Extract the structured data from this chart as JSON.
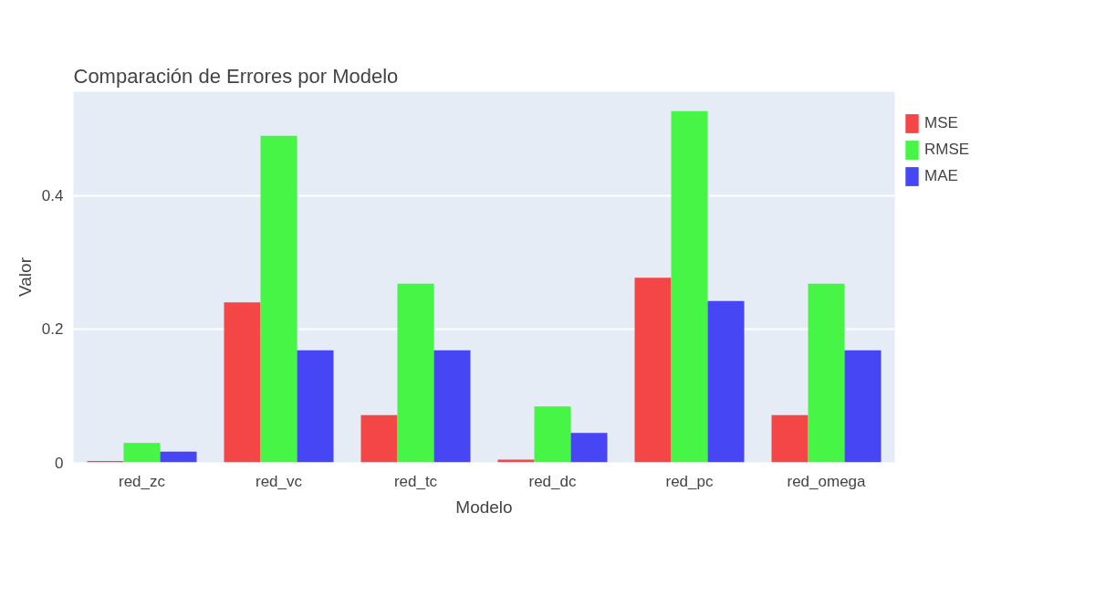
{
  "chart_data": {
    "type": "bar",
    "title": "Comparación de Errores por Modelo",
    "xlabel": "Modelo",
    "ylabel": "Valor",
    "categories": [
      "red_zc",
      "red_vc",
      "red_tc",
      "red_dc",
      "red_pc",
      "red_omega"
    ],
    "series": [
      {
        "name": "MSE",
        "color": "#f44646",
        "values": [
          0.002,
          0.24,
          0.071,
          0.004,
          0.277,
          0.071
        ]
      },
      {
        "name": "RMSE",
        "color": "#46f546",
        "values": [
          0.029,
          0.49,
          0.268,
          0.084,
          0.527,
          0.268
        ]
      },
      {
        "name": "MAE",
        "color": "#4646f5",
        "values": [
          0.016,
          0.168,
          0.168,
          0.044,
          0.242,
          0.168
        ]
      }
    ],
    "ylim": [
      0,
      0.556
    ],
    "yticks": [
      0,
      0.2,
      0.4
    ],
    "grid": "y",
    "legend": "top right"
  }
}
